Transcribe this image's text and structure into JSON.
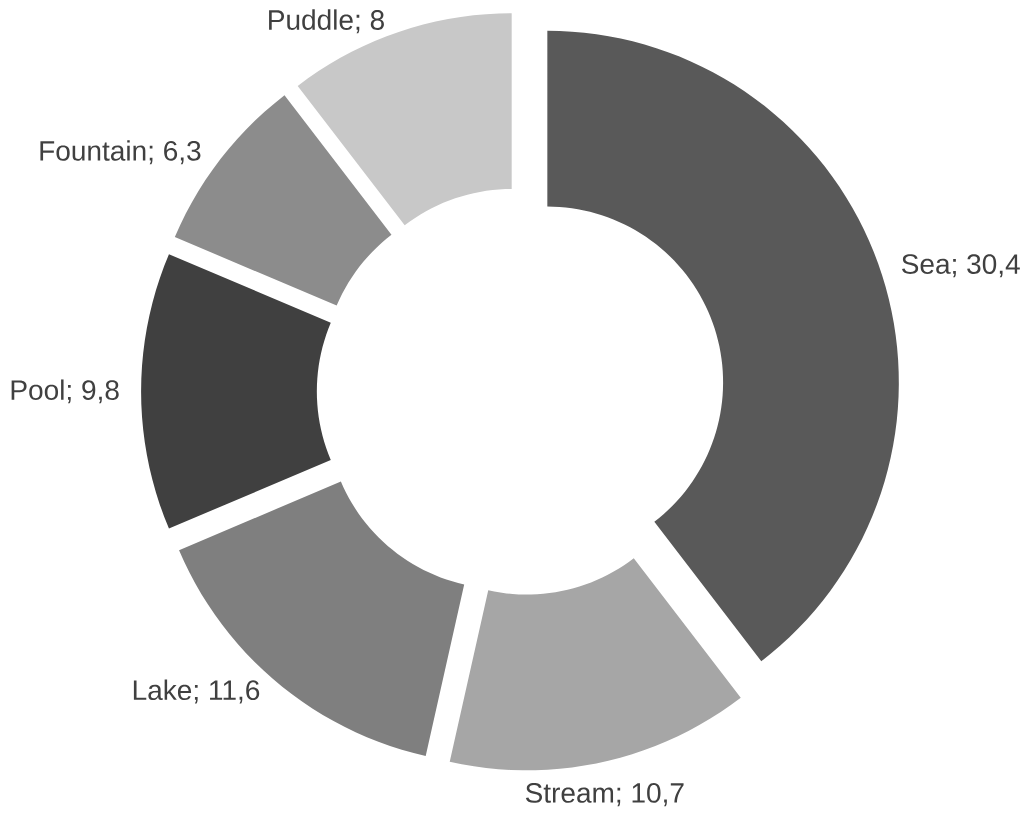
{
  "chart_data": {
    "type": "donut",
    "categories": [
      "Sea",
      "Stream",
      "Lake",
      "Pool",
      "Fountain",
      "Puddle"
    ],
    "values": [
      30.4,
      10.7,
      11.6,
      9.8,
      6.3,
      8
    ],
    "value_labels": [
      "; 30,4",
      "; 10,7",
      "; 11,6",
      "; 9,8",
      "; 6,3",
      "; 8"
    ],
    "colors": [
      "#595959",
      "#a6a6a6",
      "#7f7f7f",
      "#404040",
      "#8c8c8c",
      "#c8c8c8"
    ]
  }
}
